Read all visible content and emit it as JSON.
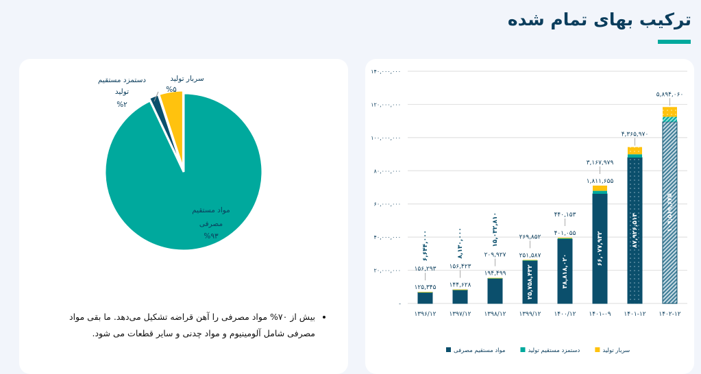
{
  "header": {
    "title": "ترکیب بهای تمام شده"
  },
  "colors": {
    "material": "#0b4f6c",
    "labour": "#00a99d",
    "overhead": "#ffc20e",
    "title": "#0b3d5c"
  },
  "note": "بیش از ۷۰% مواد مصرفی را آهن قراضه تشکیل می‌دهد. ما بقی مواد مصرفی شامل آلومینیوم و مواد چدنی و سایر قطعات می شود.",
  "chart_data": [
    {
      "type": "pie",
      "slices": [
        {
          "name": "مواد مستقیم مصرفی",
          "value": 93,
          "label": "%۹۳",
          "color": "#00a99d"
        },
        {
          "name": "دستمزد مستقیم تولید",
          "value": 2,
          "label": "%۲",
          "color": "#0b4f6c"
        },
        {
          "name": "سربار تولید",
          "value": 5,
          "label": "%۵",
          "color": "#ffc20e"
        }
      ]
    },
    {
      "type": "bar",
      "stacked": true,
      "categories": [
        "۱۳۹۶/۱۲",
        "۱۳۹۷/۱۲",
        "۱۳۹۸/۱۲",
        "۱۳۹۹/۱۲",
        "۱۴۰۰/۱۲",
        "۱۴۰۱-۰۹",
        "۱۴۰۱-۱۲",
        "۱۴۰۲-۱۲"
      ],
      "ylim": [
        0,
        140000000
      ],
      "yticks": [
        "-",
        "۲۰,۰۰۰,۰۰۰",
        "۴۰,۰۰۰,۰۰۰",
        "۶۰,۰۰۰,۰۰۰",
        "۸۰,۰۰۰,۰۰۰",
        "۱۰۰,۰۰۰,۰۰۰",
        "۱۲۰,۰۰۰,۰۰۰",
        "۱۴۰,۰۰۰,۰۰۰"
      ],
      "grid": true,
      "legend": "bottom",
      "series": [
        {
          "name": "مواد مستقیم مصرفی",
          "color": "#0b4f6c",
          "values": [
            6644000,
            8130000,
            15032810,
            25758432,
            38818020,
            66077932,
            87926513,
            109519645
          ],
          "labels": [
            "۶,۶۴۴,۰۰۰",
            "۸,۱۳۰,۰۰۰",
            "۱۵,۰۳۲,۸۱۰",
            "۲۵,۷۵۸,۴۳۲",
            "۳۸,۸۱۸,۰۲۰",
            "۶۶,۰۷۷,۹۳۲",
            "۸۷,۹۲۶,۵۱۳",
            "۱۰۹,۵۱۹,۶۴۵"
          ]
        },
        {
          "name": "دستمزد مستقیم تولید",
          "color": "#00a99d",
          "values": [
            125345,
            144628,
            194499,
            251587,
            401055,
            1811655,
            2000000,
            3000000
          ],
          "labels": [
            "۱۲۵,۳۴۵",
            "۱۴۴,۶۲۸",
            "۱۹۴,۴۹۹",
            "۲۵۱,۵۸۷",
            "۴۰۱,۰۵۵",
            "۱,۸۱۱,۶۵۵",
            "",
            ""
          ]
        },
        {
          "name": "سربار تولید",
          "color": "#ffc20e",
          "values": [
            156293,
            156423,
            209927,
            269852,
            440153,
            3167979,
            4365970,
            5894060
          ],
          "labels": [
            "۱۵۶,۲۹۳",
            "۱۵۶,۴۲۳",
            "۲۰۹,۹۲۷",
            "۲۶۹,۸۵۲",
            "۴۴۰,۱۵۳",
            "۳,۱۶۷,۹۷۹",
            "۴,۳۶۵,۹۷۰",
            "۵,۸۹۴,۰۶۰"
          ]
        }
      ]
    }
  ]
}
